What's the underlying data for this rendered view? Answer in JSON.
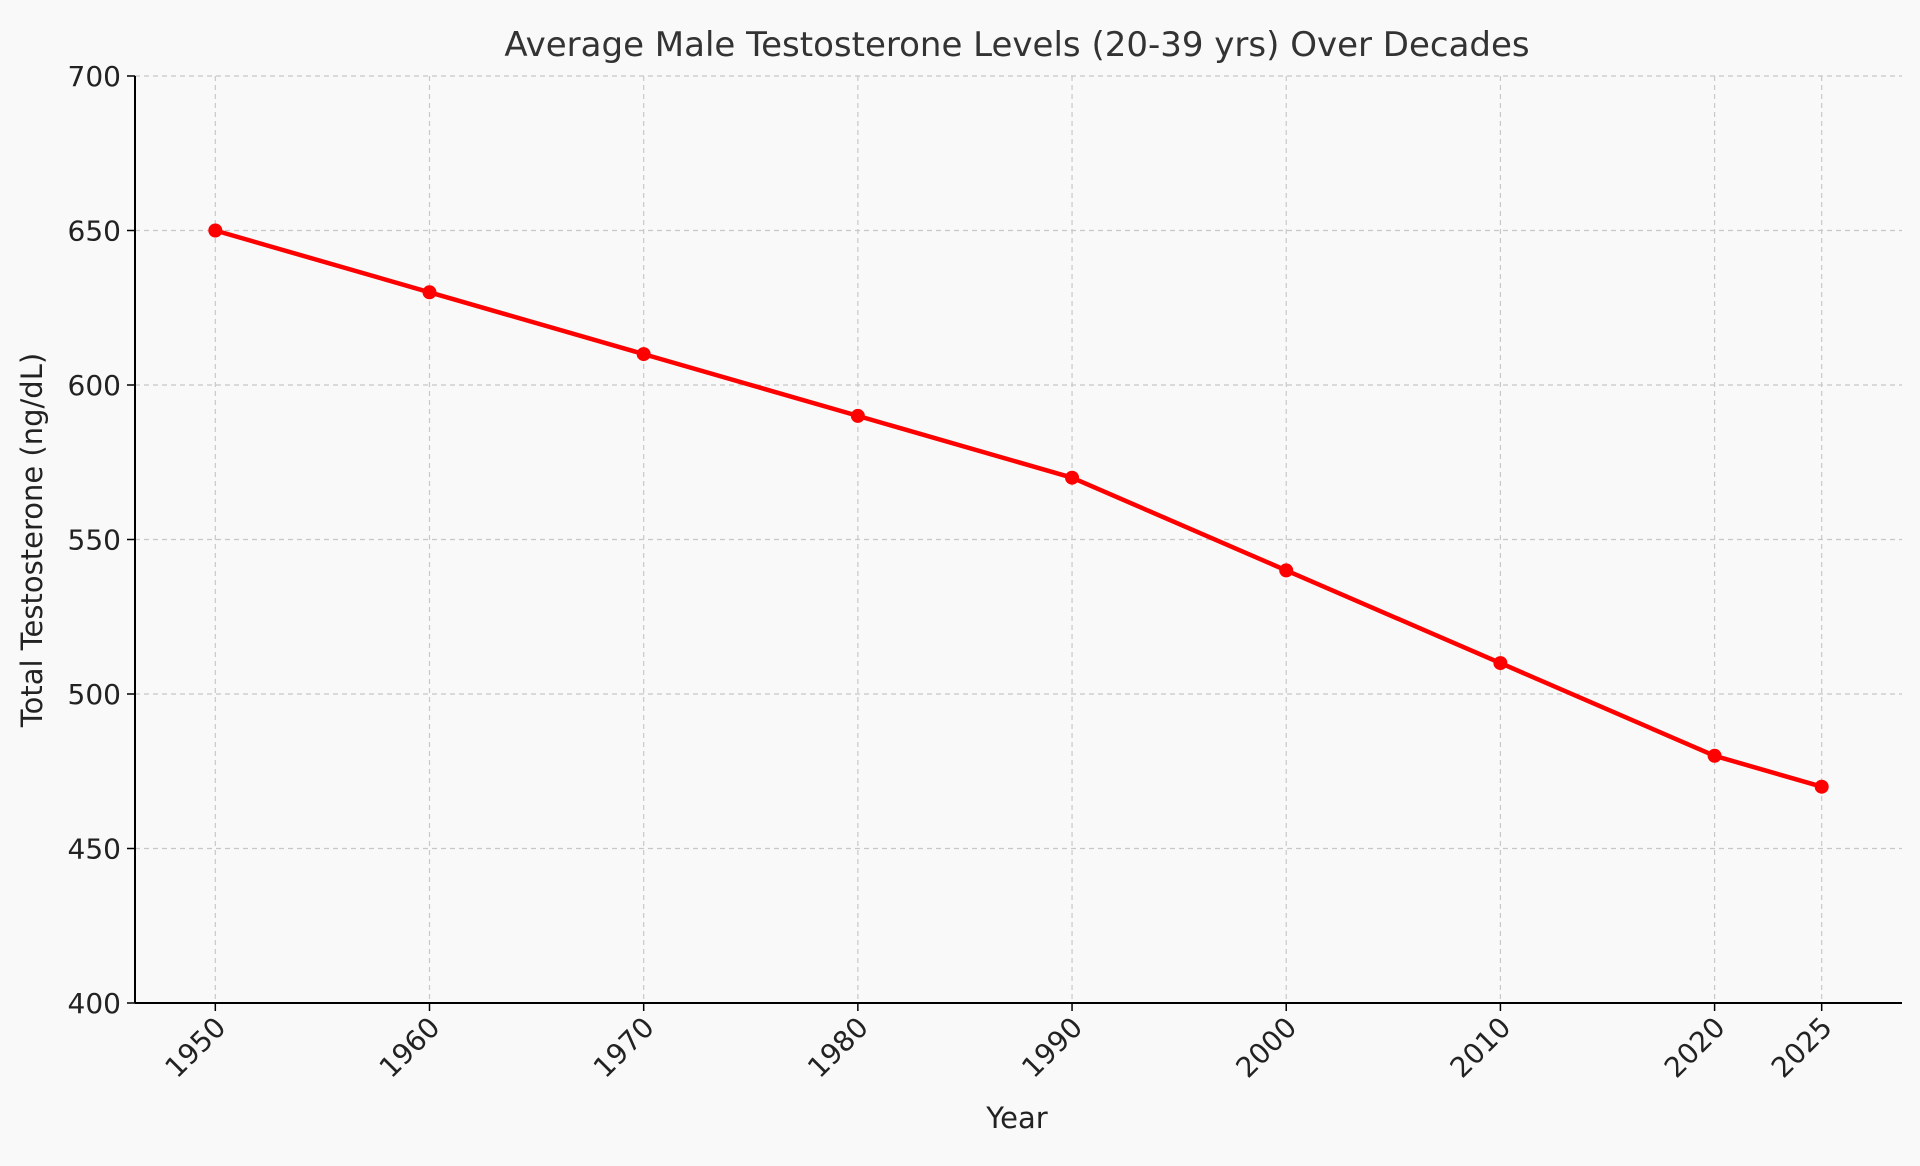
{
  "chart_data": {
    "type": "line",
    "title": "Average Male Testosterone Levels (20-39 yrs) Over Decades",
    "xlabel": "Year",
    "ylabel": "Total Testosterone (ng/dL)",
    "x": [
      1950,
      1960,
      1970,
      1980,
      1990,
      2000,
      2010,
      2020,
      2025
    ],
    "series": [
      {
        "values": [
          650,
          630,
          610,
          590,
          570,
          540,
          510,
          480,
          470
        ],
        "color": "#ff0000",
        "marker": "circle"
      }
    ],
    "xticks": [
      "1950",
      "1960",
      "1970",
      "1980",
      "1990",
      "2000",
      "2010",
      "2020",
      "2025"
    ],
    "yticks": [
      "400",
      "450",
      "500",
      "550",
      "600",
      "650",
      "700"
    ],
    "xlim": [
      1946.25,
      2028.75
    ],
    "ylim": [
      400,
      700
    ],
    "grid": true,
    "background": "#f9f9f9"
  }
}
